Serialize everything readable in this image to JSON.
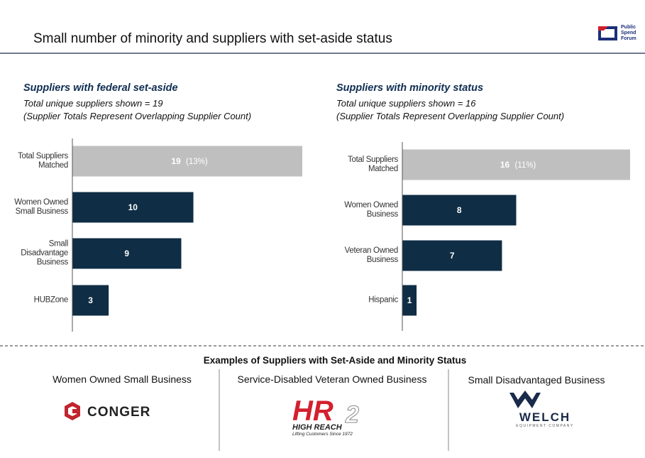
{
  "title": "Small number of minority and suppliers with set-aside status",
  "brand": {
    "line1": "Public",
    "line2": "Spend",
    "line3": "Forum"
  },
  "chart_data": [
    {
      "type": "bar",
      "orientation": "horizontal",
      "title": "Suppliers with federal set-aside",
      "subtitle": [
        "Total unique suppliers shown = 19",
        "(Supplier Totals Represent Overlapping Supplier Count)"
      ],
      "categories": [
        "Total Suppliers Matched",
        "Women Owned Small Business",
        "Small Disadvantage Business",
        "HUBZone"
      ],
      "values": [
        19,
        10,
        9,
        3
      ],
      "colors": [
        "#bfbfbf",
        "#0f2d44",
        "#0f2d44",
        "#0f2d44"
      ],
      "annotation": "(13%)"
    },
    {
      "type": "bar",
      "orientation": "horizontal",
      "title": "Suppliers with minority status",
      "subtitle": [
        "Total unique suppliers shown = 16",
        "(Supplier Totals Represent Overlapping Supplier Count)"
      ],
      "categories": [
        "Total Suppliers Matched",
        "Women Owned Business",
        "Veteran Owned Business",
        "Hispanic"
      ],
      "values": [
        16,
        8,
        7,
        1
      ],
      "colors": [
        "#bfbfbf",
        "#0f2d44",
        "#0f2d44",
        "#0f2d44"
      ],
      "annotation": "(11%)"
    }
  ],
  "examples": {
    "heading": "Examples of Suppliers with Set-Aside and Minority Status",
    "items": [
      {
        "label": "Women Owned Small Business",
        "logo": [
          "CONGER"
        ]
      },
      {
        "label": "Service-Disabled Veteran Owned Business",
        "logo": [
          "HR",
          "2",
          "HIGH REACH",
          "Lifting Customers Since 1972"
        ]
      },
      {
        "label": "Small Disadvantaged Business",
        "logo": [
          "WELCH",
          "EQUIPMENT COMPANY"
        ]
      }
    ]
  }
}
